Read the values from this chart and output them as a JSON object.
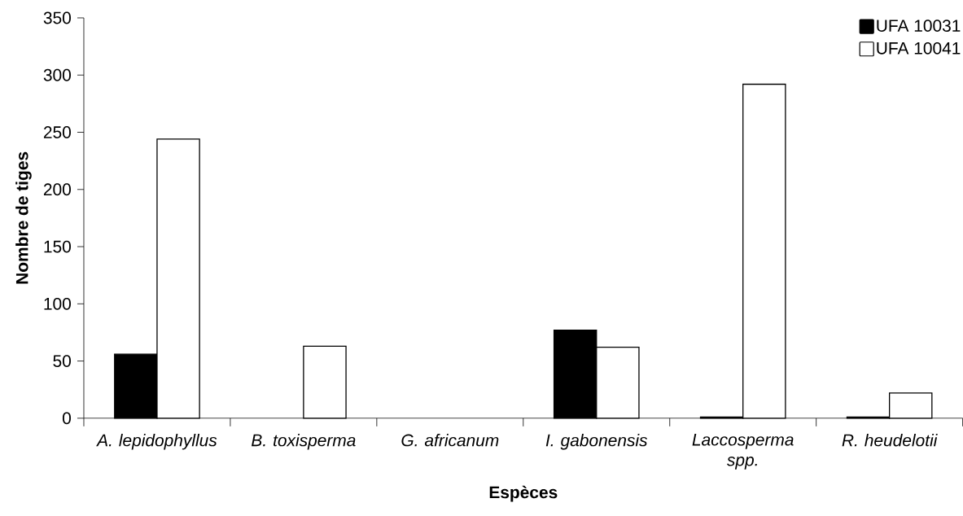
{
  "chart_data": {
    "type": "bar",
    "xlabel": "Espèces",
    "ylabel": "Nombre de tiges",
    "categories": [
      "A. lepidophyllus",
      "B. toxisperma",
      "G. africanum",
      "I. gabonensis",
      "Laccosperma spp.",
      "R. heudelotii"
    ],
    "series": [
      {
        "name": "UFA 10031",
        "color": "#000000",
        "values": [
          56,
          null,
          null,
          77,
          1,
          1
        ]
      },
      {
        "name": "UFA 10041",
        "color": "#ffffff",
        "values": [
          244,
          63,
          null,
          62,
          292,
          22
        ]
      }
    ],
    "ylim": [
      0,
      350
    ],
    "yticks": [
      0,
      50,
      100,
      150,
      200,
      250,
      300,
      350
    ],
    "legend": "top right"
  }
}
